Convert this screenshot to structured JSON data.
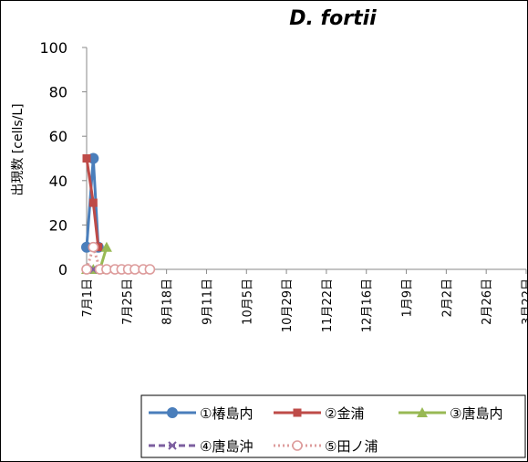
{
  "chart_data": {
    "type": "line",
    "title": "D. fortii",
    "xlabel": "",
    "ylabel": "出現数 [cells/L]",
    "ylim": [
      0,
      100
    ],
    "yticks": [
      0,
      20,
      40,
      60,
      80,
      100
    ],
    "x_range": [
      "2000-07-01",
      "2001-03-22"
    ],
    "x_tick_dates": [
      "2000-07-01",
      "2000-07-25",
      "2000-08-18",
      "2000-09-11",
      "2000-10-05",
      "2000-10-29",
      "2000-11-22",
      "2000-12-16",
      "2001-01-09",
      "2001-02-02",
      "2001-02-26",
      "2001-03-22"
    ],
    "x_tick_labels": [
      "7月1日",
      "7月25日",
      "8月18日",
      "9月11日",
      "10月5日",
      "10月29日",
      "11月22日",
      "12月16日",
      "1月9日",
      "2月2日",
      "2月26日",
      "3月22日"
    ],
    "grid": false,
    "legend_position": "bottom",
    "series": [
      {
        "name": "①椿島内",
        "color": "#4a7ebb",
        "marker": "circle",
        "dash": "solid",
        "x": [
          "2000-07-01",
          "2000-07-05",
          "2000-07-08"
        ],
        "y": [
          10,
          50,
          10
        ]
      },
      {
        "name": "②金浦",
        "color": "#be4b48",
        "marker": "square",
        "dash": "solid",
        "x": [
          "2000-07-01",
          "2000-07-05",
          "2000-07-08"
        ],
        "y": [
          50,
          30,
          10
        ]
      },
      {
        "name": "③唐島内",
        "color": "#98b954",
        "marker": "triangle",
        "dash": "solid",
        "x": [
          "2000-07-01",
          "2000-07-05",
          "2000-07-09",
          "2000-07-13"
        ],
        "y": [
          0,
          0,
          0,
          10
        ]
      },
      {
        "name": "④唐島沖",
        "color": "#7d60a0",
        "marker": "x",
        "dash": "dash",
        "x": [
          "2000-07-01",
          "2000-07-05",
          "2000-07-10"
        ],
        "y": [
          0,
          0,
          0
        ]
      },
      {
        "name": "⑤田ノ浦",
        "color": "#dd9c9c",
        "marker": "open-circle",
        "dash": "dot",
        "x": [
          "2000-07-01",
          "2000-07-05",
          "2000-07-09",
          "2000-07-13",
          "2000-07-18",
          "2000-07-22",
          "2000-07-26",
          "2000-07-30",
          "2000-08-04",
          "2000-08-08"
        ],
        "y": [
          0,
          10,
          0,
          0,
          0,
          0,
          0,
          0,
          0,
          0
        ]
      }
    ]
  }
}
